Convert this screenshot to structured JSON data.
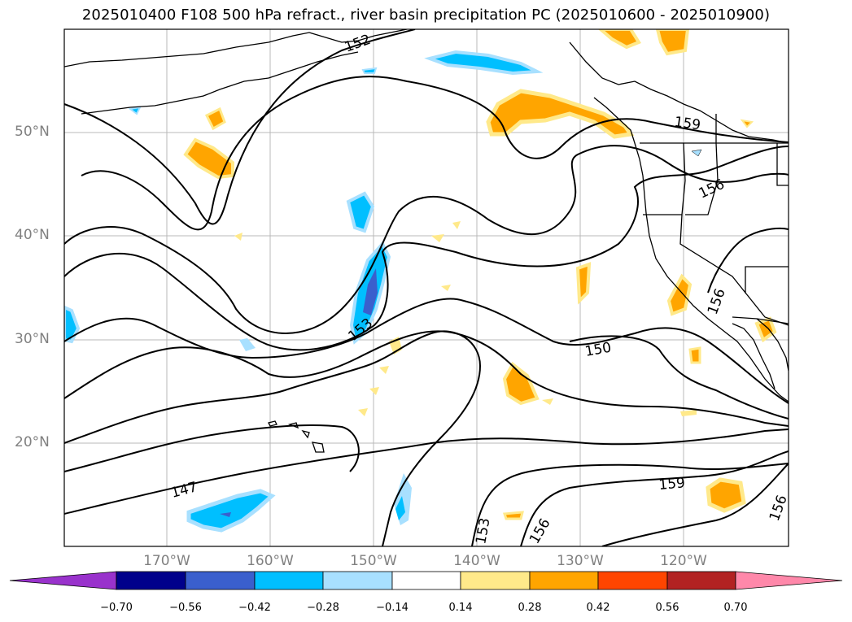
{
  "title": "2025010400 F108 500 hPa refract., river basin precipitation PC (2025010600 - 2025010900)",
  "colors": {
    "land_outline": "#000000",
    "grid": "#b0b0b0",
    "contour": "#000000",
    "pos_1": "#ffe98a",
    "pos_2": "#ffa500",
    "neg_1": "#a8e0ff",
    "neg_2": "#00bfff",
    "neg_3": "#3a5fcd"
  },
  "lat_labels": [
    "50°N",
    "40°N",
    "30°N",
    "20°N"
  ],
  "lon_labels": [
    "170°W",
    "160°W",
    "150°W",
    "140°W",
    "130°W",
    "120°W"
  ],
  "contour_labels": [
    "152",
    "159",
    "156",
    "156",
    "153",
    "150",
    "147",
    "153",
    "156",
    "159",
    "156"
  ],
  "colorbar": {
    "colors": [
      "#9932cc",
      "#00008b",
      "#3a5fcd",
      "#00bfff",
      "#a8e0ff",
      "#ffffff",
      "#ffe98a",
      "#ffa500",
      "#ff4500",
      "#b22222",
      "#ff88aa"
    ],
    "ticks": [
      "−0.70",
      "−0.56",
      "−0.42",
      "−0.28",
      "−0.14",
      "0.14",
      "0.28",
      "0.42",
      "0.56",
      "0.70"
    ]
  }
}
